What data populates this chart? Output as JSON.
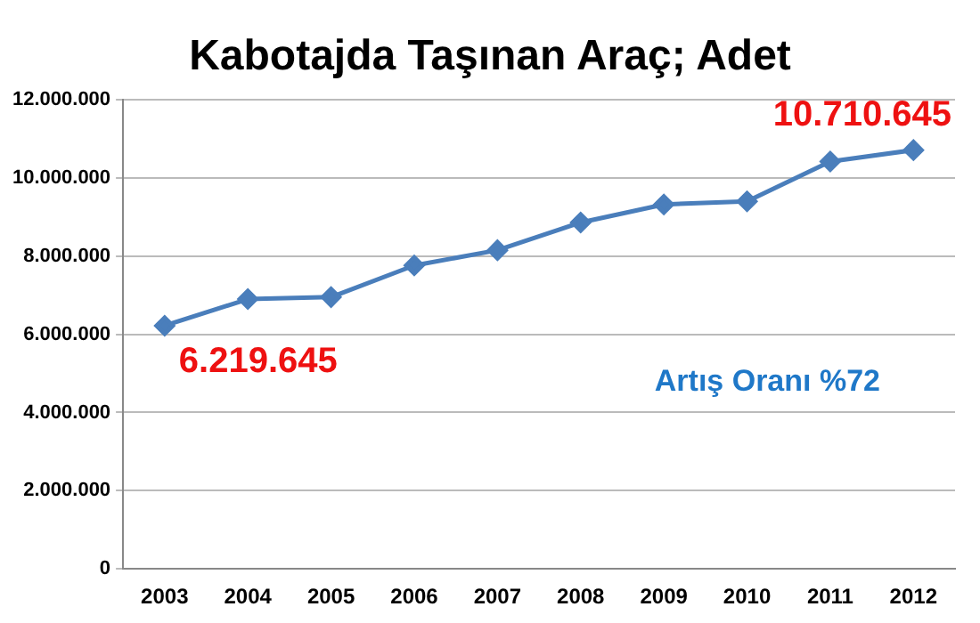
{
  "chart_data": {
    "type": "line",
    "title": "Kabotajda Taşınan Araç; Adet",
    "categories": [
      "2003",
      "2004",
      "2005",
      "2006",
      "2007",
      "2008",
      "2009",
      "2010",
      "2011",
      "2012"
    ],
    "series": [
      {
        "color": "#4a7ebb",
        "values": [
          6219645,
          6900000,
          6950000,
          7760000,
          8150000,
          8860000,
          9320000,
          9400000,
          10420000,
          10710645
        ],
        "value_labels": [
          "6.219.645",
          null,
          null,
          null,
          null,
          null,
          null,
          null,
          null,
          "10.710.645"
        ]
      }
    ],
    "ylim": [
      0,
      12000000
    ],
    "yticks": [
      {
        "value": 0,
        "label": "0"
      },
      {
        "value": 2000000,
        "label": "2.000.000"
      },
      {
        "value": 4000000,
        "label": "4.000.000"
      },
      {
        "value": 6000000,
        "label": "6.000.000"
      },
      {
        "value": 8000000,
        "label": "8.000.000"
      },
      {
        "value": 10000000,
        "label": "10.000.000"
      },
      {
        "value": 12000000,
        "label": "12.000.000"
      }
    ],
    "grid": "y",
    "legend": false,
    "marker": "diamond",
    "line_style": "solid",
    "annotations": [
      "Artış Oranı %72"
    ]
  }
}
